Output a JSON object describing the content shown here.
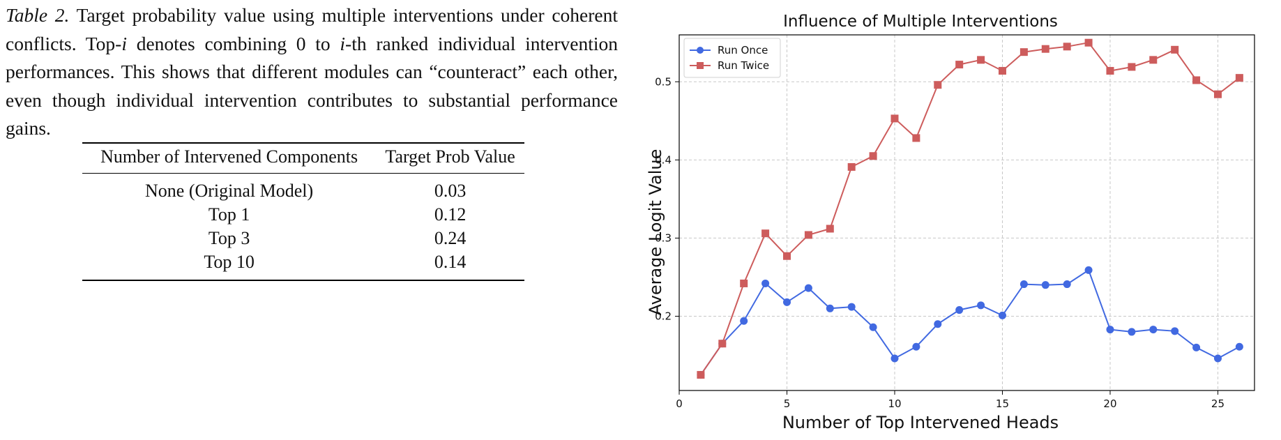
{
  "caption": {
    "label": "Table 2.",
    "part1": " Target probability value using multiple interventions under coherent conflicts. Top-",
    "var1": "i",
    "part2": " denotes combining 0 to ",
    "var2": "i",
    "part3": "-th ranked individual intervention performances.  This shows that different modules can “counteract” each other, even though individual intervention contributes to substantial performance gains."
  },
  "table": {
    "headers": [
      "Number of Intervened Components",
      "Target Prob Value"
    ],
    "rows": [
      [
        "None (Original Model)",
        "0.03"
      ],
      [
        "Top 1",
        "0.12"
      ],
      [
        "Top 3",
        "0.24"
      ],
      [
        "Top 10",
        "0.14"
      ]
    ]
  },
  "chart_data": {
    "type": "line",
    "title": "Influence of Multiple Interventions",
    "xlabel": "Number of Top Intervened Heads",
    "ylabel": "Average Logit Value",
    "xlim": [
      0,
      26.7
    ],
    "ylim": [
      0.105,
      0.56
    ],
    "xticks": [
      0,
      5,
      10,
      15,
      20,
      25
    ],
    "yticks": [
      0.2,
      0.3,
      0.4,
      0.5
    ],
    "grid": true,
    "legend_position": "top-left",
    "x": [
      1,
      2,
      3,
      4,
      5,
      6,
      7,
      8,
      9,
      10,
      11,
      12,
      13,
      14,
      15,
      16,
      17,
      18,
      19,
      20,
      21,
      22,
      23,
      24,
      25,
      26
    ],
    "series": [
      {
        "name": "Run Once",
        "color": "#4169e1",
        "marker": "circle",
        "values": [
          0.125,
          0.165,
          0.194,
          0.242,
          0.218,
          0.236,
          0.21,
          0.212,
          0.186,
          0.146,
          0.161,
          0.19,
          0.208,
          0.214,
          0.201,
          0.241,
          0.24,
          0.241,
          0.259,
          0.183,
          0.18,
          0.183,
          0.181,
          0.16,
          0.146,
          0.161
        ]
      },
      {
        "name": "Run Twice",
        "color": "#cd5c5c",
        "marker": "square",
        "values": [
          0.125,
          0.165,
          0.242,
          0.306,
          0.277,
          0.304,
          0.312,
          0.391,
          0.405,
          0.453,
          0.428,
          0.496,
          0.522,
          0.528,
          0.514,
          0.538,
          0.542,
          0.545,
          0.55,
          0.514,
          0.519,
          0.528,
          0.541,
          0.502,
          0.484,
          0.505
        ]
      }
    ]
  }
}
